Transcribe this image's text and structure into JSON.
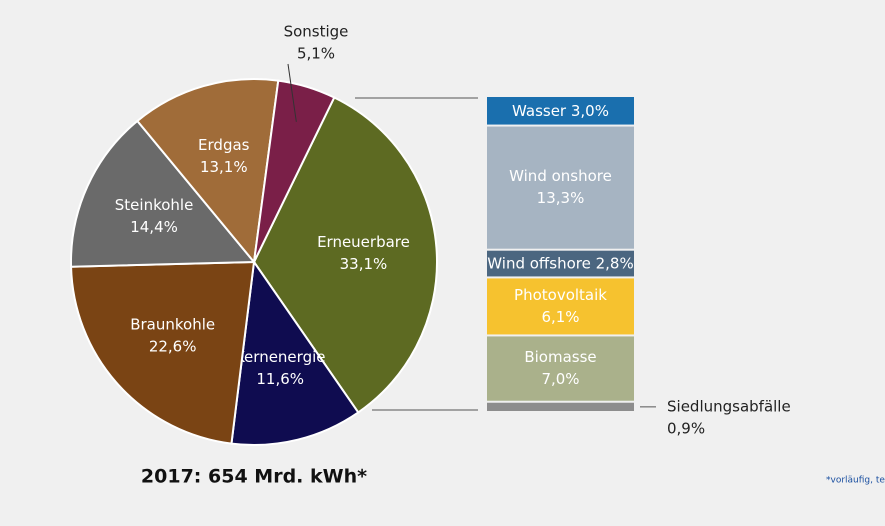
{
  "chart_data": [
    {
      "type": "pie",
      "subtitle": "2017: 654 Mrd. kWh*",
      "categories": [
        "Erneuerbare",
        "Kernenergie",
        "Braunkohle",
        "Steinkohle",
        "Erdgas",
        "Sonstige"
      ],
      "values": [
        33.1,
        11.6,
        22.6,
        14.4,
        13.1,
        5.1
      ],
      "value_labels": [
        "33,1%",
        "11,6%",
        "22,6%",
        "14,4%",
        "13,1%",
        "5,1%"
      ],
      "colors": [
        "#5d6a22",
        "#0f0c50",
        "#7a4414",
        "#6a6a6a",
        "#a06c39",
        "#7a1f48"
      ],
      "footnote": "*vorläufig, te"
    },
    {
      "type": "stacked-bar",
      "series": [
        {
          "name": "Wasser",
          "color": "#1a6fae",
          "values": [
            3.0
          ],
          "value_labels": [
            "3,0%"
          ]
        },
        {
          "name": "Wind onshore",
          "color": "#a6b4c2",
          "values": [
            13.3
          ],
          "value_labels": [
            "13,3%"
          ]
        },
        {
          "name": "Wind offshore",
          "color": "#4b6680",
          "values": [
            2.8
          ],
          "value_labels": [
            "2,8%"
          ]
        },
        {
          "name": "Photovoltaik",
          "color": "#f6c22f",
          "values": [
            6.1
          ],
          "value_labels": [
            "6,1%"
          ]
        },
        {
          "name": "Biomasse",
          "color": "#aab18b",
          "values": [
            7.0
          ],
          "value_labels": [
            "7,0%"
          ]
        },
        {
          "name": "Siedlungsabfälle",
          "color": "#8d8d8d",
          "values": [
            0.9
          ],
          "value_labels": [
            "0,9%"
          ]
        }
      ]
    }
  ]
}
